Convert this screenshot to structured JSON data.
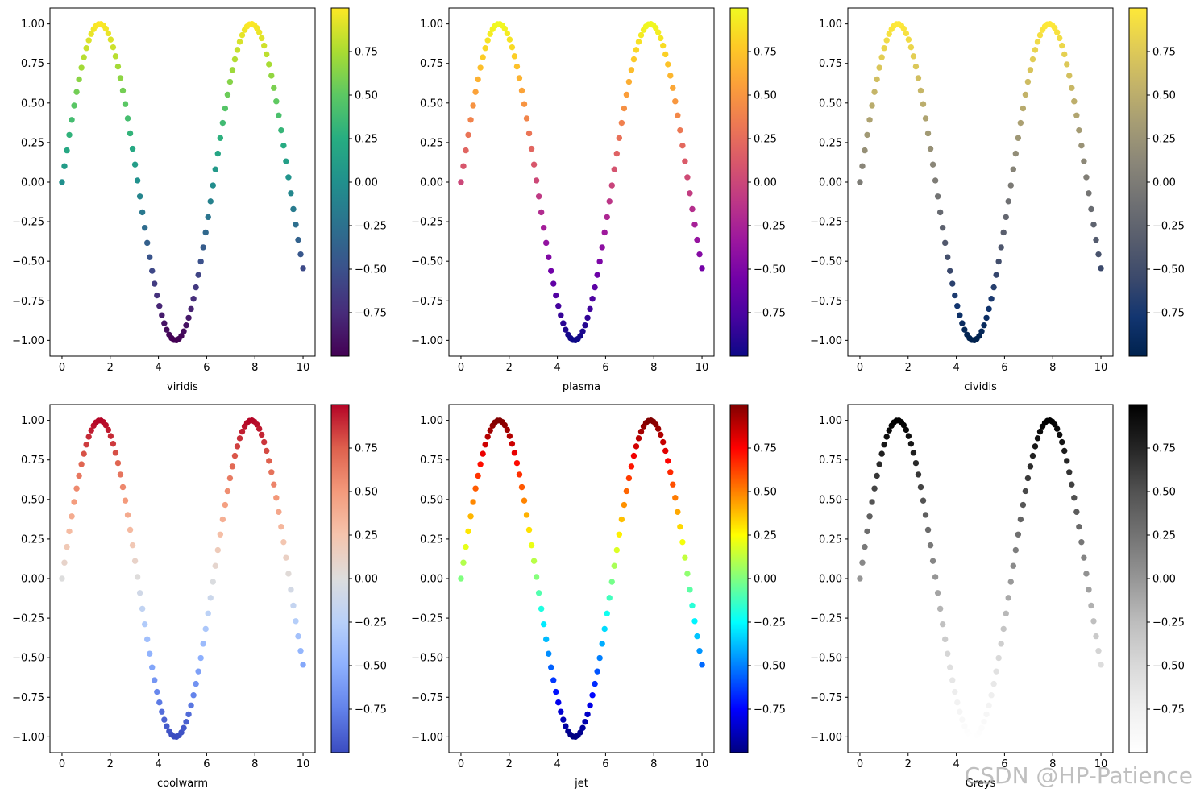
{
  "watermark": "CSDN @HP-Patience",
  "chart_data": [
    {
      "type": "scatter",
      "xlabel": "viridis",
      "colormap": "viridis",
      "function": "y = sin(x)",
      "x_range": [
        0,
        10
      ],
      "n_points": 100,
      "xlim": [
        -0.5,
        10.5
      ],
      "ylim": [
        -1.1,
        1.1
      ],
      "xticks": [
        "0",
        "2",
        "4",
        "6",
        "8",
        "10"
      ],
      "yticks": [
        "1.00",
        "0.75",
        "0.50",
        "0.25",
        "0.00",
        "−0.25",
        "−0.50",
        "−0.75",
        "−1.00"
      ],
      "colorbar_ticks": [
        "0.75",
        "0.50",
        "0.25",
        "0.00",
        "−0.25",
        "−0.50",
        "−0.75"
      ],
      "colorbar_range": [
        -1.0,
        1.0
      ],
      "grid": false,
      "colormap_stops": [
        "#440154",
        "#472c7a",
        "#3b518b",
        "#2c718e",
        "#21908d",
        "#27ad81",
        "#5cc863",
        "#aadc32",
        "#fde725"
      ]
    },
    {
      "type": "scatter",
      "xlabel": "plasma",
      "colormap": "plasma",
      "function": "y = sin(x)",
      "x_range": [
        0,
        10
      ],
      "n_points": 100,
      "xlim": [
        -0.5,
        10.5
      ],
      "ylim": [
        -1.1,
        1.1
      ],
      "xticks": [
        "0",
        "2",
        "4",
        "6",
        "8",
        "10"
      ],
      "yticks": [
        "1.00",
        "0.75",
        "0.50",
        "0.25",
        "0.00",
        "−0.25",
        "−0.50",
        "−0.75",
        "−1.00"
      ],
      "colorbar_ticks": [
        "0.75",
        "0.50",
        "0.25",
        "0.00",
        "−0.25",
        "−0.50",
        "−0.75"
      ],
      "colorbar_range": [
        -1.0,
        1.0
      ],
      "grid": false,
      "colormap_stops": [
        "#0d0887",
        "#46039f",
        "#7201a8",
        "#9c179e",
        "#bd3786",
        "#d8576b",
        "#ed7953",
        "#fb9f3a",
        "#fdca26",
        "#f0f921"
      ]
    },
    {
      "type": "scatter",
      "xlabel": "cividis",
      "colormap": "cividis",
      "function": "y = sin(x)",
      "x_range": [
        0,
        10
      ],
      "n_points": 100,
      "xlim": [
        -0.5,
        10.5
      ],
      "ylim": [
        -1.1,
        1.1
      ],
      "xticks": [
        "0",
        "2",
        "4",
        "6",
        "8",
        "10"
      ],
      "yticks": [
        "1.00",
        "0.75",
        "0.50",
        "0.25",
        "0.00",
        "−0.25",
        "−0.50",
        "−0.75",
        "−1.00"
      ],
      "colorbar_ticks": [
        "0.75",
        "0.50",
        "0.25",
        "0.00",
        "−0.25",
        "−0.50",
        "−0.75"
      ],
      "colorbar_range": [
        -1.0,
        1.0
      ],
      "grid": false,
      "colormap_stops": [
        "#00224e",
        "#123570",
        "#3b496c",
        "#575d6d",
        "#707173",
        "#8a8678",
        "#a59c74",
        "#c3b369",
        "#e1cc55",
        "#fee838"
      ]
    },
    {
      "type": "scatter",
      "xlabel": "coolwarm",
      "colormap": "coolwarm",
      "function": "y = sin(x)",
      "x_range": [
        0,
        10
      ],
      "n_points": 100,
      "xlim": [
        -0.5,
        10.5
      ],
      "ylim": [
        -1.1,
        1.1
      ],
      "xticks": [
        "0",
        "2",
        "4",
        "6",
        "8",
        "10"
      ],
      "yticks": [
        "1.00",
        "0.75",
        "0.50",
        "0.25",
        "0.00",
        "−0.25",
        "−0.50",
        "−0.75",
        "−1.00"
      ],
      "colorbar_ticks": [
        "0.75",
        "0.50",
        "0.25",
        "0.00",
        "−0.25",
        "−0.50",
        "−0.75"
      ],
      "colorbar_range": [
        -1.0,
        1.0
      ],
      "grid": false,
      "colormap_stops": [
        "#3b4cc0",
        "#6282ea",
        "#8db0fe",
        "#b8d0f9",
        "#dddddd",
        "#f5c4ad",
        "#f49a7b",
        "#de604d",
        "#b40426"
      ]
    },
    {
      "type": "scatter",
      "xlabel": "jet",
      "colormap": "jet",
      "function": "y = sin(x)",
      "x_range": [
        0,
        10
      ],
      "n_points": 100,
      "xlim": [
        -0.5,
        10.5
      ],
      "ylim": [
        -1.1,
        1.1
      ],
      "xticks": [
        "0",
        "2",
        "4",
        "6",
        "8",
        "10"
      ],
      "yticks": [
        "1.00",
        "0.75",
        "0.50",
        "0.25",
        "0.00",
        "−0.25",
        "−0.50",
        "−0.75",
        "−1.00"
      ],
      "colorbar_ticks": [
        "0.75",
        "0.50",
        "0.25",
        "0.00",
        "−0.25",
        "−0.50",
        "−0.75"
      ],
      "colorbar_range": [
        -1.0,
        1.0
      ],
      "grid": false,
      "colormap_stops": [
        "#000080",
        "#0000ff",
        "#0080ff",
        "#00ffff",
        "#80ff80",
        "#ffff00",
        "#ff8000",
        "#ff0000",
        "#800000"
      ]
    },
    {
      "type": "scatter",
      "xlabel": "Greys",
      "colormap": "Greys",
      "function": "y = sin(x)",
      "x_range": [
        0,
        10
      ],
      "n_points": 100,
      "xlim": [
        -0.5,
        10.5
      ],
      "ylim": [
        -1.1,
        1.1
      ],
      "xticks": [
        "0",
        "2",
        "4",
        "6",
        "8",
        "10"
      ],
      "yticks": [
        "1.00",
        "0.75",
        "0.50",
        "0.25",
        "0.00",
        "−0.25",
        "−0.50",
        "−0.75",
        "−1.00"
      ],
      "colorbar_ticks": [
        "0.75",
        "0.50",
        "0.25",
        "0.00",
        "−0.25",
        "−0.50",
        "−0.75"
      ],
      "colorbar_range": [
        -1.0,
        1.0
      ],
      "grid": false,
      "colormap_stops": [
        "#ffffff",
        "#f0f0f0",
        "#d9d9d9",
        "#bdbdbd",
        "#969696",
        "#737373",
        "#525252",
        "#252525",
        "#000000"
      ]
    }
  ]
}
